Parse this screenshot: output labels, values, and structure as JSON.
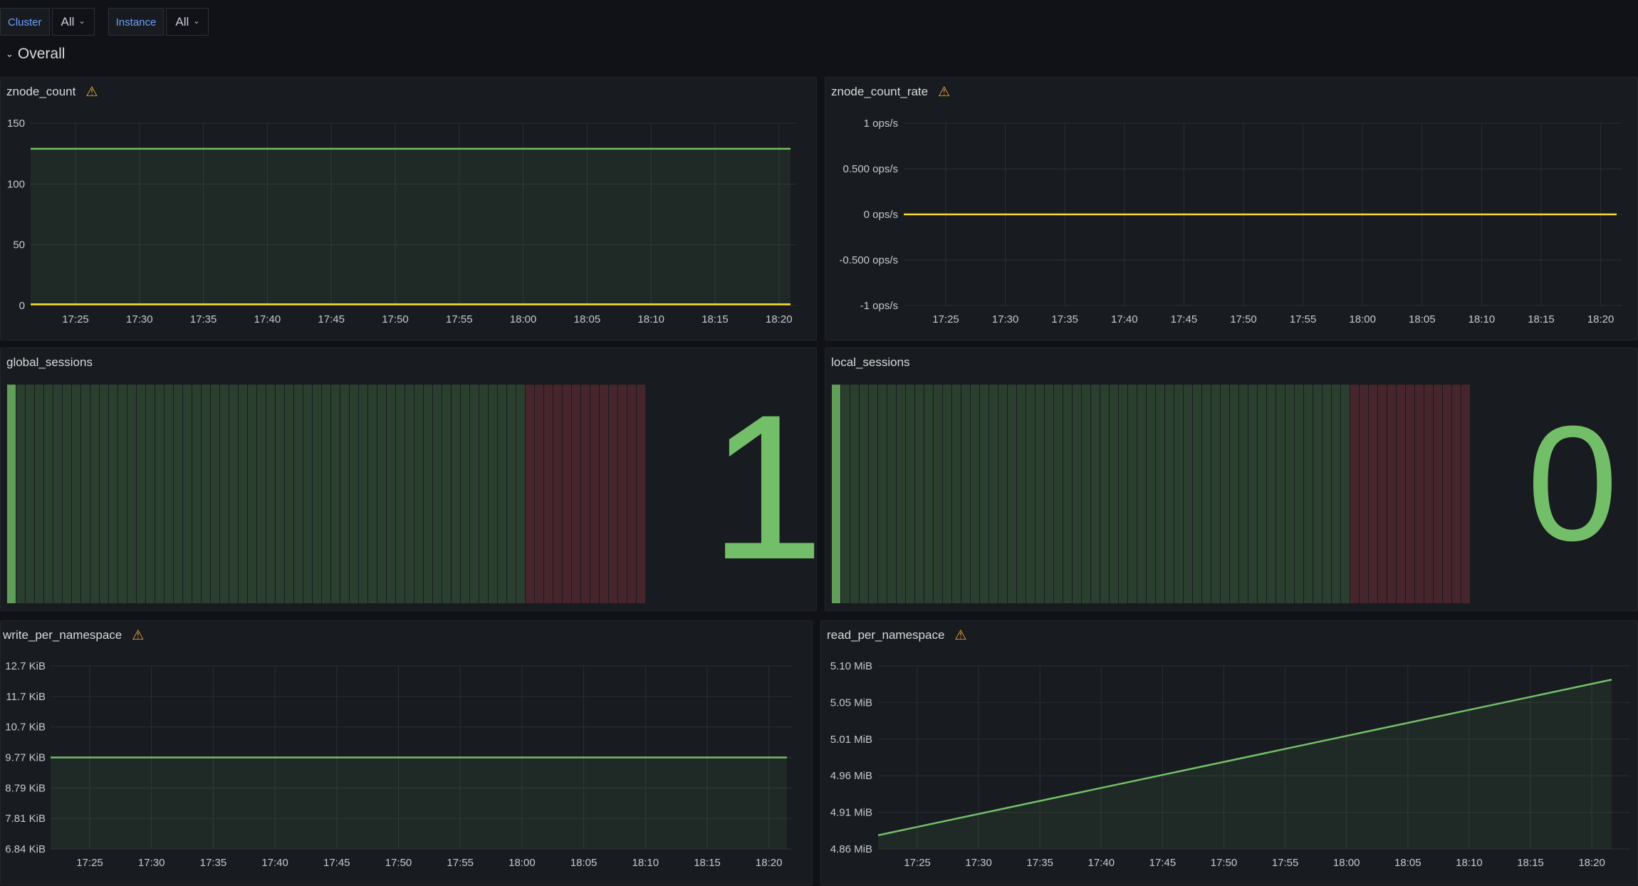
{
  "variables": [
    {
      "label": "Cluster",
      "value": "All"
    },
    {
      "label": "Instance",
      "value": "All"
    }
  ],
  "row": {
    "title": "Overall"
  },
  "colors": {
    "green": "#73bf69",
    "yellow": "#fade2a",
    "red": "#f2495c",
    "grid": "#2b2e34",
    "axis_text": "#c7c9d1"
  },
  "time_ticks": [
    "17:25",
    "17:30",
    "17:35",
    "17:40",
    "17:45",
    "17:50",
    "17:55",
    "18:00",
    "18:05",
    "18:10",
    "18:15",
    "18:20"
  ],
  "panels": {
    "znode_count": {
      "title": "znode_count",
      "warning_icon": "warning-icon",
      "chart_data": {
        "type": "area",
        "yticks": [
          "150",
          "100",
          "50",
          "0"
        ],
        "ylim": [
          0,
          150
        ],
        "series": [
          {
            "values": [
              129,
              129
            ]
          },
          {
            "values": [
              1,
              1
            ]
          }
        ]
      }
    },
    "znode_count_rate": {
      "title": "znode_count_rate",
      "warning_icon": "warning-icon",
      "chart_data": {
        "type": "line",
        "yticks": [
          "1 ops/s",
          "0.500 ops/s",
          "0 ops/s",
          "-0.500 ops/s",
          "-1 ops/s"
        ],
        "ylim": [
          -1,
          1
        ],
        "series": [
          {
            "values": [
              0,
              0
            ]
          }
        ]
      }
    },
    "global_sessions": {
      "title": "global_sessions",
      "value": "1",
      "green_bars": 56,
      "red_bars": 13
    },
    "local_sessions": {
      "title": "local_sessions",
      "value": "0",
      "green_bars": 56,
      "red_bars": 13
    },
    "write_per_namespace": {
      "title": "write_per_namespace",
      "warning_icon": "warning-icon",
      "chart_data": {
        "type": "area",
        "yticks": [
          "12.7 KiB",
          "11.7 KiB",
          "10.7 KiB",
          "9.77 KiB",
          "8.79 KiB",
          "7.81 KiB",
          "6.84 KiB"
        ],
        "ylim": [
          6.84,
          12.7
        ],
        "series": [
          {
            "values": [
              9.77,
              9.77
            ]
          }
        ]
      }
    },
    "read_per_namespace": {
      "title": "read_per_namespace",
      "warning_icon": "warning-icon",
      "chart_data": {
        "type": "area",
        "yticks": [
          "5.10 MiB",
          "5.05 MiB",
          "5.01 MiB",
          "4.96 MiB",
          "4.91 MiB",
          "4.86 MiB"
        ],
        "ylim": [
          4.86,
          5.1
        ],
        "series": [
          {
            "values": [
              4.878,
              5.082
            ]
          }
        ]
      }
    }
  }
}
